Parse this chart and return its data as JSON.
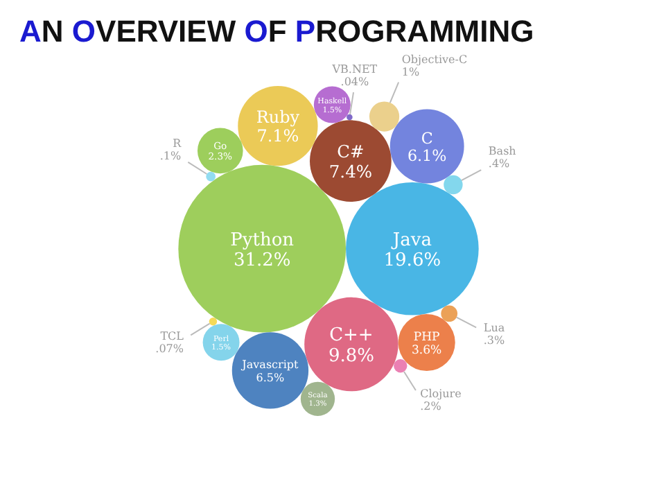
{
  "chart_data": {
    "type": "other",
    "title": "AN OVERVIEW OF PROGRAMMING",
    "categories": [
      "Python",
      "Java",
      "C++",
      "C#",
      "Ruby",
      "Javascript",
      "C",
      "PHP",
      "Go",
      "Perl",
      "Haskell",
      "Scala",
      "Objective-C",
      "Bash",
      "Lua",
      "Clojure",
      "R",
      "TCL",
      "VB.NET"
    ],
    "values": [
      31.2,
      19.6,
      9.8,
      7.4,
      7.1,
      6.5,
      6.1,
      3.6,
      2.3,
      1.5,
      1.5,
      1.3,
      1,
      0.4,
      0.3,
      0.2,
      0.1,
      0.07,
      0.04
    ],
    "value_labels": [
      "31.2%",
      "19.6%",
      "9.8%",
      "7.4%",
      "7.1%",
      "6.5%",
      "6.1%",
      "3.6%",
      "2.3%",
      "1.5%",
      "1.5%",
      "1.3%",
      "1%",
      ".4%",
      ".3%",
      ".2%",
      ".1%",
      ".07%",
      ".04%"
    ],
    "colors": [
      "#8dc63f",
      "#29a9e0",
      "#d94f6e",
      "#8b2a0e",
      "#e8c13a",
      "#2f6db5",
      "#5b6fd8",
      "#e96a2c",
      "#8cc63f",
      "#6fcde8",
      "#a953c9",
      "#8fa87a",
      "#e8c878",
      "#6dd0ea",
      "#e8913a",
      "#e86aa6",
      "#7fd6ee",
      "#f3d43a",
      "#6a4fc0"
    ]
  }
}
